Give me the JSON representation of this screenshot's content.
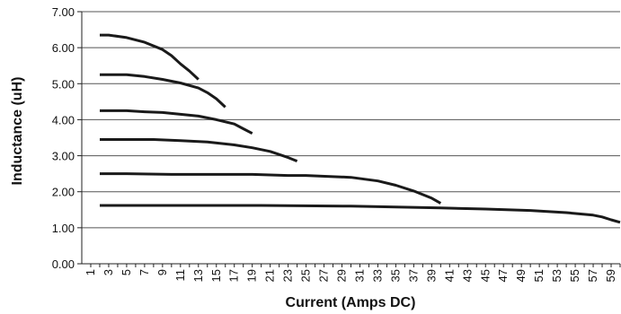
{
  "chart_data": {
    "type": "line",
    "title": "",
    "xlabel": "Current (Amps DC)",
    "ylabel": "Inductance (uH)",
    "xlim": [
      0,
      60
    ],
    "ylim": [
      0,
      7
    ],
    "x_ticks": [
      "1",
      "3",
      "5",
      "7",
      "9",
      "11",
      "13",
      "15",
      "17",
      "19",
      "21",
      "23",
      "25",
      "27",
      "29",
      "31",
      "33",
      "35",
      "37",
      "39",
      "41",
      "43",
      "45",
      "47",
      "49",
      "51",
      "53",
      "55",
      "57",
      "59"
    ],
    "y_ticks": [
      "0.00",
      "1.00",
      "2.00",
      "3.00",
      "4.00",
      "5.00",
      "6.00",
      "7.00"
    ],
    "grid": "horizontal",
    "legend": "none",
    "series": [
      {
        "x": [
          2,
          3,
          5,
          7,
          9,
          10,
          11,
          12,
          13
        ],
        "y": [
          6.35,
          6.35,
          6.28,
          6.15,
          5.95,
          5.78,
          5.55,
          5.35,
          5.12
        ]
      },
      {
        "x": [
          2,
          5,
          7,
          9,
          11,
          13,
          14,
          15,
          16
        ],
        "y": [
          5.25,
          5.25,
          5.2,
          5.12,
          5.02,
          4.88,
          4.75,
          4.58,
          4.35
        ]
      },
      {
        "x": [
          2,
          5,
          7,
          9,
          11,
          13,
          15,
          17,
          18,
          19
        ],
        "y": [
          4.25,
          4.25,
          4.22,
          4.2,
          4.15,
          4.1,
          4.0,
          3.88,
          3.75,
          3.62
        ]
      },
      {
        "x": [
          2,
          5,
          8,
          11,
          14,
          17,
          19,
          21,
          23,
          24
        ],
        "y": [
          3.45,
          3.45,
          3.45,
          3.42,
          3.38,
          3.3,
          3.22,
          3.12,
          2.95,
          2.85
        ]
      },
      {
        "x": [
          2,
          5,
          10,
          15,
          19,
          23,
          25,
          30,
          33,
          35,
          37,
          39,
          40
        ],
        "y": [
          2.5,
          2.5,
          2.48,
          2.48,
          2.48,
          2.45,
          2.45,
          2.4,
          2.3,
          2.18,
          2.02,
          1.82,
          1.68
        ]
      },
      {
        "x": [
          2,
          10,
          20,
          30,
          40,
          45,
          50,
          54,
          57,
          58,
          59,
          60
        ],
        "y": [
          1.62,
          1.62,
          1.62,
          1.6,
          1.55,
          1.52,
          1.48,
          1.42,
          1.35,
          1.3,
          1.22,
          1.15
        ]
      }
    ]
  }
}
